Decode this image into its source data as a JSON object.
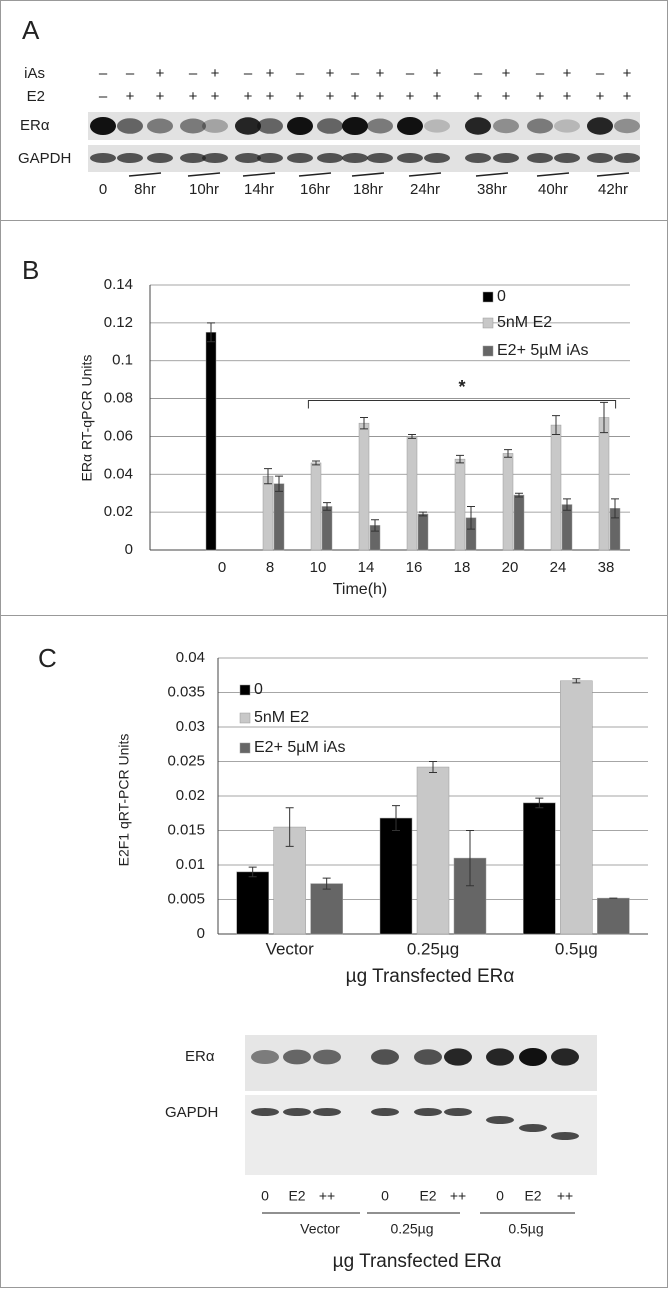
{
  "panel_a": {
    "label": "A",
    "row_labels": [
      "iAs",
      "E2"
    ],
    "iAs": [
      "–",
      "–",
      "+",
      "–",
      "+",
      "–",
      "+",
      "–",
      "+",
      "–",
      "+",
      "–",
      "+",
      "–",
      "+",
      "–",
      "+",
      "–",
      "+"
    ],
    "E2": [
      "–",
      "+",
      "+",
      "+",
      "+",
      "+",
      "+",
      "+",
      "+",
      "+",
      "+",
      "+",
      "+",
      "+",
      "+",
      "+",
      "+",
      "+",
      "+"
    ],
    "blot_labels": [
      "ERα",
      "GAPDH"
    ],
    "lanes": [
      "0",
      "8hr",
      "10hr",
      "14hr",
      "16hr",
      "18hr",
      "24hr",
      "38hr",
      "40hr",
      "42hr"
    ]
  },
  "chart_data": [
    {
      "type": "bar",
      "panel_label": "B",
      "y_label": "ERα RT-qPCR Units",
      "x_label": "Time(h)",
      "categories": [
        null,
        "0",
        "8",
        "10",
        "14",
        "16",
        "18",
        "20",
        "24",
        "38"
      ],
      "series": [
        {
          "name": "0",
          "color": "#000000",
          "values": [
            null,
            0.115,
            null,
            null,
            null,
            null,
            null,
            null,
            null,
            null
          ],
          "errors": [
            null,
            0.005,
            null,
            null,
            null,
            null,
            null,
            null,
            null,
            null
          ]
        },
        {
          "name": "5nM E2",
          "color": "#c8c8c8",
          "values": [
            null,
            null,
            0.039,
            0.046,
            0.067,
            0.06,
            0.048,
            0.051,
            0.066,
            0.07
          ],
          "errors": [
            null,
            null,
            0.004,
            0.001,
            0.003,
            0.001,
            0.002,
            0.002,
            0.005,
            0.008
          ]
        },
        {
          "name": "E2+ 5µM iAs",
          "color": "#666666",
          "values": [
            null,
            null,
            0.035,
            0.023,
            0.013,
            0.019,
            0.017,
            0.029,
            0.024,
            0.022
          ],
          "errors": [
            null,
            null,
            0.004,
            0.002,
            0.003,
            0.001,
            0.006,
            0.001,
            0.003,
            0.005
          ]
        }
      ],
      "ylim": [
        0,
        0.14
      ],
      "yticks": [
        0,
        0.02,
        0.04,
        0.06,
        0.08,
        0.1,
        0.12,
        0.14
      ],
      "grid": true,
      "annotation": "*"
    },
    {
      "type": "bar",
      "panel_label": "C",
      "y_label": "E2F1 qRT-PCR Units",
      "x_label": "µg Transfected ERα",
      "categories": [
        "Vector",
        "0.25µg",
        "0.5µg"
      ],
      "series": [
        {
          "name": "0",
          "color": "#000000",
          "values": [
            0.009,
            0.0168,
            0.019
          ],
          "errors": [
            0.0007,
            0.0018,
            0.0007
          ]
        },
        {
          "name": "5nM E2",
          "color": "#c8c8c8",
          "values": [
            0.0155,
            0.0242,
            0.0367
          ],
          "errors": [
            0.0028,
            0.0008,
            0.0003
          ]
        },
        {
          "name": "E2+ 5µM iAs",
          "color": "#666666",
          "values": [
            0.0073,
            0.011,
            0.0052
          ],
          "errors": [
            0.0008,
            0.004,
            0
          ]
        }
      ],
      "ylim": [
        0,
        0.04
      ],
      "yticks": [
        0,
        0.005,
        0.01,
        0.015,
        0.02,
        0.025,
        0.03,
        0.035,
        0.04
      ],
      "grid": true
    }
  ],
  "panel_d": {
    "blot_labels": [
      "ERα",
      "GAPDH"
    ],
    "lanes": [
      "0",
      "E2",
      "++",
      "0",
      "E2",
      "++",
      "0",
      "E2",
      "++"
    ],
    "groups": [
      "Vector",
      "0.25µg",
      "0.5µg"
    ],
    "caption": "µg Transfected ERα"
  }
}
